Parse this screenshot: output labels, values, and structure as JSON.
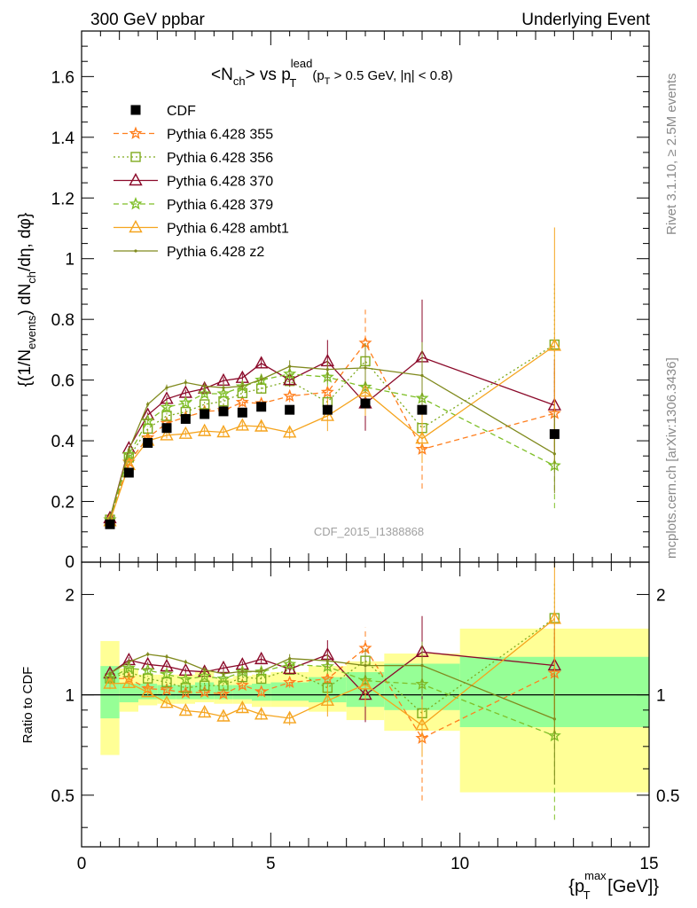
{
  "header": {
    "left": "300 GeV ppbar",
    "right": "Underlying Event"
  },
  "side_labels": {
    "rivet": "Rivet 3.1.10, ≥ 2.5M events",
    "mcplots": "mcplots.cern.ch [arXiv:1306.3436]"
  },
  "watermark": "CDF_2015_I1388868",
  "plot_title": {
    "main": "<N",
    "sub_ch": "ch",
    "mid": "> vs p",
    "sup_lead": "lead",
    "sub_T": "T",
    "cut_a": "(p",
    "cut_sub": "T",
    "cut_b": " > 0.5 GeV, |η| < 0.8)"
  },
  "ylabel": {
    "a": "{(1/N",
    "sub_events": "events",
    "b": ") dN",
    "sub_ch": "ch",
    "c": "/dη, dφ}"
  },
  "ratio_ylabel": "Ratio to CDF",
  "xlabel": {
    "a": "{p",
    "sup": "max",
    "sub": "T",
    "b": " [GeV]}"
  },
  "colors": {
    "cdf": "#000000",
    "p355": "#ff7f1e",
    "p356": "#7faa1e",
    "p370": "#8b0a2a",
    "p379": "#7fbf28",
    "ambt1": "#f5a41e",
    "z2": "#808a1e",
    "band_outer": "#ffff96",
    "band_inner": "#96ff96"
  },
  "chart_data": {
    "type": "line",
    "x": [
      0.75,
      1.25,
      1.75,
      2.25,
      2.75,
      3.25,
      3.75,
      4.25,
      4.75,
      5.5,
      6.5,
      7.5,
      9.0,
      12.5
    ],
    "xlim": [
      0,
      15
    ],
    "xticks": [
      0,
      5,
      10,
      15
    ],
    "main": {
      "ylim": [
        0,
        1.75
      ],
      "yticks": [
        "0.2",
        "0.4",
        "0.6",
        "0.8",
        "1",
        "1.2",
        "1.4",
        "1.6"
      ],
      "ytick_values": [
        0.2,
        0.4,
        0.6,
        0.8,
        1.0,
        1.2,
        1.4,
        1.6
      ]
    },
    "ratio": {
      "ylim": [
        0.35,
        2.5
      ],
      "log": true,
      "yticks": [
        "0.5",
        "1",
        "2"
      ],
      "ytick_values": [
        0.5,
        1,
        2
      ]
    },
    "cdf": {
      "name": "CDF",
      "values": [
        0.125,
        0.295,
        0.393,
        0.442,
        0.472,
        0.488,
        0.497,
        0.493,
        0.512,
        0.502,
        0.502,
        0.523,
        0.502,
        0.422
      ],
      "band_bins": [
        [
          0.5,
          1.0
        ],
        [
          1.0,
          1.5
        ],
        [
          1.5,
          2.0
        ],
        [
          2.0,
          2.5
        ],
        [
          2.5,
          3.0
        ],
        [
          3.0,
          3.5
        ],
        [
          3.5,
          4.0
        ],
        [
          4.0,
          4.5
        ],
        [
          4.5,
          5.0
        ],
        [
          5.0,
          6.0
        ],
        [
          6.0,
          7.0
        ],
        [
          7.0,
          8.0
        ],
        [
          8.0,
          10.0
        ],
        [
          10.0,
          15.0
        ]
      ],
      "band_outer": [
        [
          0.66,
          1.45
        ],
        [
          0.89,
          1.2
        ],
        [
          0.93,
          1.15
        ],
        [
          0.94,
          1.15
        ],
        [
          0.94,
          1.15
        ],
        [
          0.95,
          1.18
        ],
        [
          0.94,
          1.12
        ],
        [
          0.94,
          1.14
        ],
        [
          0.92,
          1.15
        ],
        [
          0.92,
          1.17
        ],
        [
          0.89,
          1.22
        ],
        [
          0.84,
          1.26
        ],
        [
          0.78,
          1.33
        ],
        [
          0.51,
          1.58
        ]
      ],
      "band_inner": [
        [
          0.85,
          1.22
        ],
        [
          0.95,
          1.08
        ],
        [
          0.97,
          1.08
        ],
        [
          0.97,
          1.07
        ],
        [
          0.97,
          1.07
        ],
        [
          0.97,
          1.09
        ],
        [
          0.97,
          1.07
        ],
        [
          0.97,
          1.07
        ],
        [
          0.96,
          1.08
        ],
        [
          0.96,
          1.09
        ],
        [
          0.95,
          1.13
        ],
        [
          0.92,
          1.17
        ],
        [
          0.9,
          1.24
        ],
        [
          0.8,
          1.3
        ]
      ]
    },
    "series": [
      {
        "name": "Pythia 6.428 355",
        "key": "p355",
        "marker": "star",
        "dash": "6,4",
        "values": [
          0.14,
          0.33,
          0.41,
          0.458,
          0.478,
          0.497,
          0.5,
          0.527,
          0.523,
          0.547,
          0.56,
          0.722,
          0.372,
          0.49
        ],
        "err": [
          0.005,
          0.008,
          0.008,
          0.01,
          0.01,
          0.012,
          0.012,
          0.014,
          0.016,
          0.02,
          0.03,
          0.11,
          0.13,
          0.14
        ]
      },
      {
        "name": "Pythia 6.428 356",
        "key": "p356",
        "marker": "square",
        "dash": "2,3",
        "values": [
          0.14,
          0.345,
          0.44,
          0.482,
          0.495,
          0.52,
          0.53,
          0.557,
          0.572,
          0.597,
          0.527,
          0.662,
          0.442,
          0.717
        ],
        "err": [
          0.005,
          0.008,
          0.008,
          0.01,
          0.01,
          0.012,
          0.012,
          0.014,
          0.016,
          0.02,
          0.03,
          0.06,
          0.1,
          0.2
        ]
      },
      {
        "name": "Pythia 6.428 370",
        "key": "p370",
        "marker": "triangle",
        "dash": "",
        "values": [
          0.145,
          0.375,
          0.485,
          0.538,
          0.558,
          0.572,
          0.598,
          0.607,
          0.655,
          0.6,
          0.662,
          0.523,
          0.675,
          0.517
        ],
        "err": [
          0.005,
          0.008,
          0.008,
          0.01,
          0.01,
          0.012,
          0.012,
          0.014,
          0.016,
          0.02,
          0.07,
          0.09,
          0.19,
          0.15
        ]
      },
      {
        "name": "Pythia 6.428 379",
        "key": "p379",
        "marker": "star",
        "dash": "6,4",
        "values": [
          0.14,
          0.355,
          0.465,
          0.51,
          0.525,
          0.555,
          0.555,
          0.578,
          0.6,
          0.62,
          0.61,
          0.577,
          0.54,
          0.318
        ],
        "err": [
          0.005,
          0.008,
          0.008,
          0.01,
          0.01,
          0.012,
          0.012,
          0.014,
          0.016,
          0.02,
          0.03,
          0.05,
          0.1,
          0.14
        ]
      },
      {
        "name": "Pythia 6.428 ambt1",
        "key": "ambt1",
        "marker": "triangle",
        "dash": "",
        "values": [
          0.135,
          0.32,
          0.4,
          0.418,
          0.423,
          0.432,
          0.428,
          0.45,
          0.447,
          0.427,
          0.482,
          0.562,
          0.407,
          0.713
        ],
        "err": [
          0.005,
          0.008,
          0.008,
          0.01,
          0.01,
          0.012,
          0.012,
          0.014,
          0.016,
          0.02,
          0.05,
          0.08,
          0.08,
          0.39
        ]
      },
      {
        "name": "Pythia 6.428 z2",
        "key": "z2",
        "marker": "dot",
        "dash": "",
        "values": [
          0.145,
          0.37,
          0.52,
          0.575,
          0.592,
          0.58,
          0.575,
          0.58,
          0.602,
          0.645,
          0.635,
          0.64,
          0.615,
          0.357
        ],
        "err": [
          0.005,
          0.008,
          0.008,
          0.01,
          0.01,
          0.012,
          0.012,
          0.014,
          0.016,
          0.02,
          0.03,
          0.08,
          0.11,
          0.13
        ]
      }
    ]
  }
}
